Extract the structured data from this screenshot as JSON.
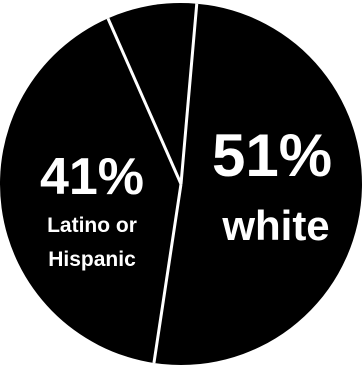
{
  "chart_data": {
    "type": "pie",
    "slices": [
      {
        "label": "white",
        "percent_text": "51%",
        "value": 51
      },
      {
        "label": "Latino or Hispanic",
        "label_lines": [
          "Latino or",
          "Hispanic"
        ],
        "percent_text": "41%",
        "value": 41
      },
      {
        "label": "",
        "percent_text": "",
        "value": 8
      }
    ],
    "colors": {
      "slice_fill": "#000000",
      "divider": "#ffffff",
      "text": "#ffffff"
    }
  }
}
